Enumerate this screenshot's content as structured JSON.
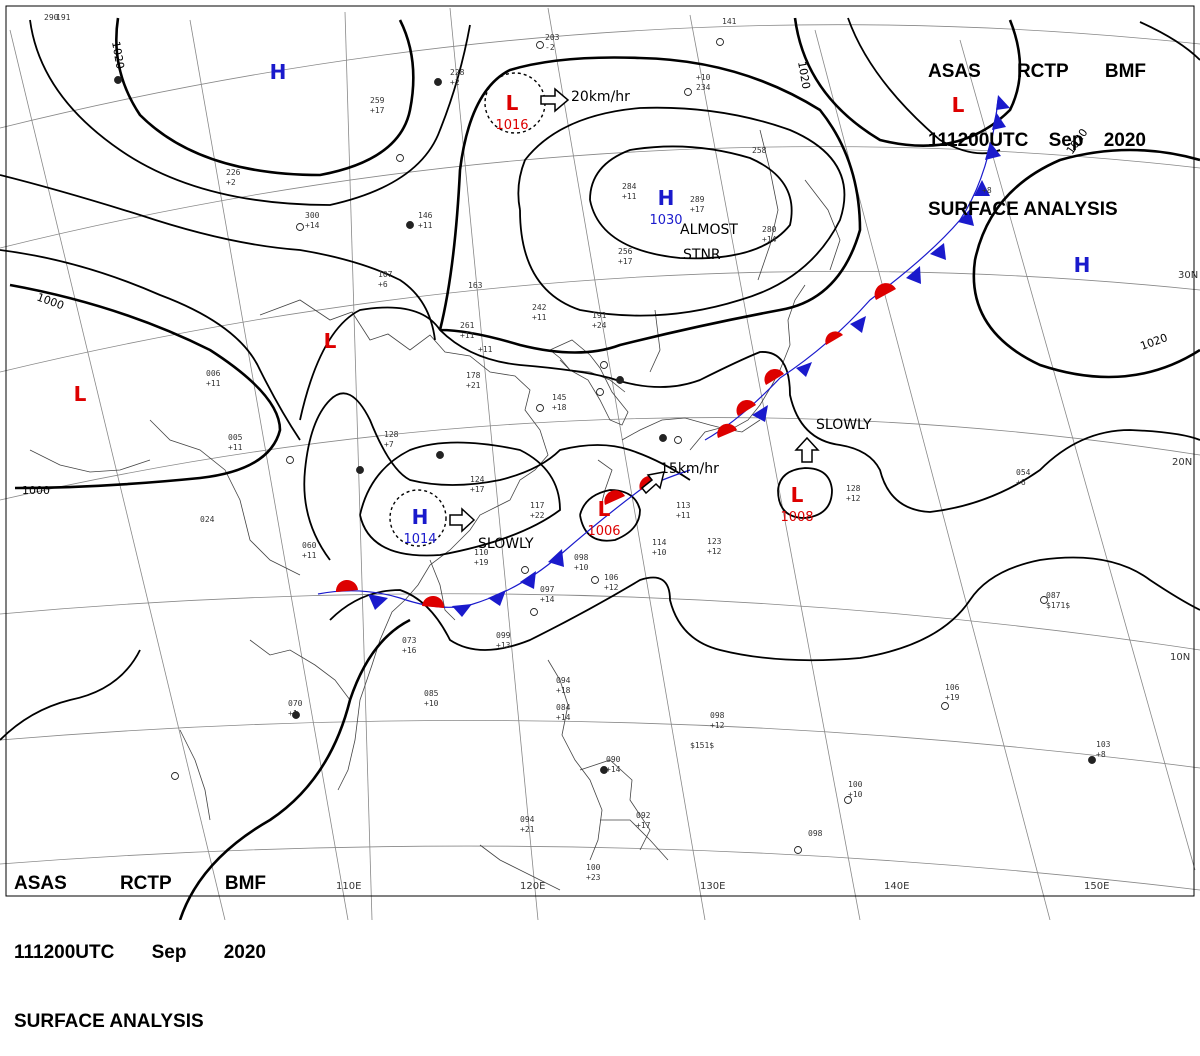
{
  "header": {
    "line1": [
      "ASAS",
      "RCTP",
      "BMF"
    ],
    "line2": [
      "111200UTC",
      "Sep",
      "2020"
    ],
    "line3": "SURFACE ANALYSIS"
  },
  "lat_labels": [
    "30N",
    "20N",
    "10N"
  ],
  "lon_labels": [
    "110E",
    "120E",
    "130E",
    "140E",
    "150E"
  ],
  "isobar_labels": [
    "1020",
    "1020",
    "1020",
    "1020",
    "1000",
    "1000"
  ],
  "pressure_centers": [
    {
      "type": "H",
      "value": ""
    },
    {
      "type": "L",
      "value": "1016"
    },
    {
      "type": "H",
      "value": "1030"
    },
    {
      "type": "L",
      "value": ""
    },
    {
      "type": "L",
      "value": ""
    },
    {
      "type": "H",
      "value": "1014"
    },
    {
      "type": "L",
      "value": "1006"
    },
    {
      "type": "L",
      "value": "1008"
    },
    {
      "type": "L",
      "value": ""
    },
    {
      "type": "H",
      "value": ""
    }
  ],
  "annotations": {
    "speed_north": "20km/hr",
    "speed_front": "15km/hr",
    "almost": "ALMOST",
    "stnr": "STNR",
    "slowly_east": "SLOWLY",
    "slowly_south": "SLOWLY"
  },
  "colors": {
    "high": "#1a1acc",
    "low": "#dd0000",
    "warm_front": "#dd0000",
    "cold_front": "#1a1acc",
    "isobar": "#000000",
    "coast": "#444444",
    "grid": "#888888"
  },
  "station_plots": [
    "203",
    "-2",
    "228",
    "+2",
    "259",
    "+17",
    "226",
    "+2",
    "300",
    "+14",
    "146",
    "+11",
    "107",
    "+6",
    "006",
    "+11",
    "005",
    "+11",
    "128",
    "+7",
    "124",
    "+17",
    "117",
    "+22",
    "110",
    "+19",
    "098",
    "+10",
    "097",
    "+14",
    "099",
    "+13",
    "085",
    "+10",
    "070",
    "+1",
    "024",
    "060",
    "+11",
    "073",
    "+16",
    "106",
    "+12",
    "113",
    "+11",
    "114",
    "+10",
    "123",
    "+12",
    "128",
    "+12",
    "054",
    "+6",
    "087",
    "$171$",
    "106",
    "+19",
    "098",
    "+12",
    "$151$",
    "103",
    "+8",
    "100",
    "+10",
    "094",
    "+18",
    "084",
    "+14",
    "090",
    "+14",
    "092",
    "+17",
    "094",
    "+21",
    "100",
    "+23",
    "098",
    "284",
    "+11",
    "289",
    "+17",
    "280",
    "+14",
    "256",
    "+17",
    "242",
    "+11",
    "191",
    "+24",
    "261",
    "+11",
    "163",
    "+11",
    "178",
    "+21",
    "145",
    "+18",
    "141",
    "+10",
    "234",
    "258",
    "+8",
    "290",
    "191"
  ]
}
